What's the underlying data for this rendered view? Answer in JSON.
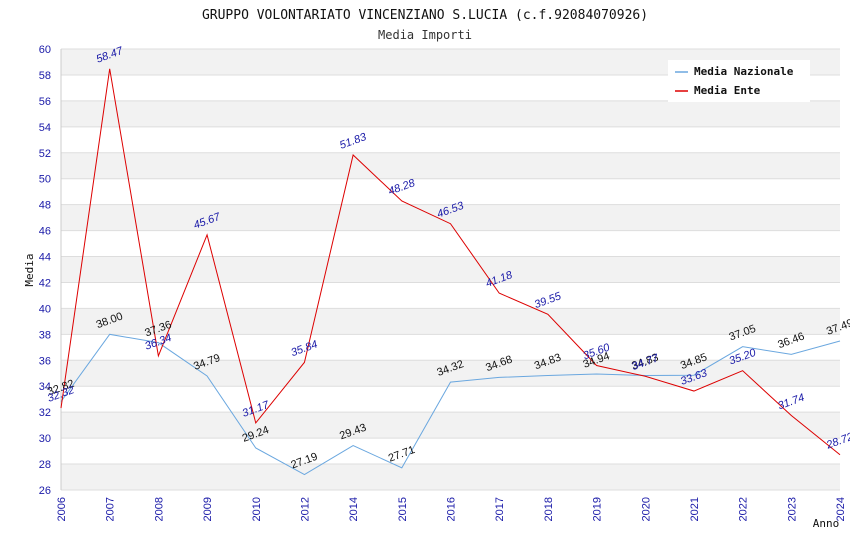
{
  "chart_data": {
    "type": "line",
    "title": "GRUPPO VOLONTARIATO VINCENZIANO S.LUCIA (c.f.92084070926)",
    "subtitle": "Media Importi",
    "xlabel": "Anno",
    "ylabel": "Media",
    "ylim": [
      26,
      60
    ],
    "yticks": [
      "26",
      "28",
      "30",
      "32",
      "34",
      "36",
      "38",
      "40",
      "42",
      "44",
      "46",
      "48",
      "50",
      "52",
      "54",
      "56",
      "58",
      "60"
    ],
    "grid": true,
    "legend_position": "top-right",
    "categories": [
      "2006",
      "2007",
      "2008",
      "2009",
      "2010",
      "2012",
      "2014",
      "2015",
      "2016",
      "2017",
      "2018",
      "2019",
      "2020",
      "2021",
      "2022",
      "2023",
      "2024"
    ],
    "series": [
      {
        "name": "Media Nazionale",
        "color": "#6aa7df",
        "values": [
          32.82,
          38.0,
          37.36,
          34.79,
          29.24,
          27.19,
          29.43,
          27.71,
          34.32,
          34.68,
          34.83,
          34.94,
          34.83,
          34.85,
          37.05,
          36.46,
          37.49
        ],
        "labels": [
          "32.82",
          "38.00",
          "37.36",
          "34.79",
          "29.24",
          "27.19",
          "29.43",
          "27.71",
          "34.32",
          "34.68",
          "34.83",
          "34.94",
          "34.83",
          "34.85",
          "37.05",
          "36.46",
          "37.49"
        ]
      },
      {
        "name": "Media Ente",
        "color": "#dd0000",
        "values": [
          32.32,
          58.47,
          36.34,
          45.67,
          31.17,
          35.84,
          51.83,
          48.28,
          46.53,
          41.18,
          39.55,
          35.6,
          34.77,
          33.63,
          35.2,
          31.74,
          28.72
        ],
        "labels": [
          "32.32",
          "58.47",
          "36.34",
          "45.67",
          "31.17",
          "35.84",
          "51.83",
          "48.28",
          "46.53",
          "41.18",
          "39.55",
          "35.60",
          "34.77",
          "33.63",
          "35.20",
          "31.74",
          "28.72"
        ]
      }
    ]
  }
}
